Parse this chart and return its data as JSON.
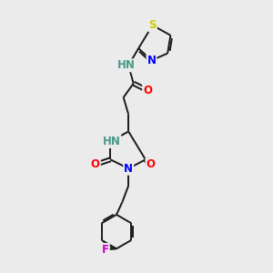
{
  "bg_color": "#ebebeb",
  "bond_color": "#1a1a1a",
  "atom_colors": {
    "N": "#0000ff",
    "O": "#ff0000",
    "S": "#cccc00",
    "F": "#cc00cc",
    "H": "#4a9a8a",
    "C": "#1a1a1a"
  },
  "font_size": 8.5,
  "line_width": 1.4
}
